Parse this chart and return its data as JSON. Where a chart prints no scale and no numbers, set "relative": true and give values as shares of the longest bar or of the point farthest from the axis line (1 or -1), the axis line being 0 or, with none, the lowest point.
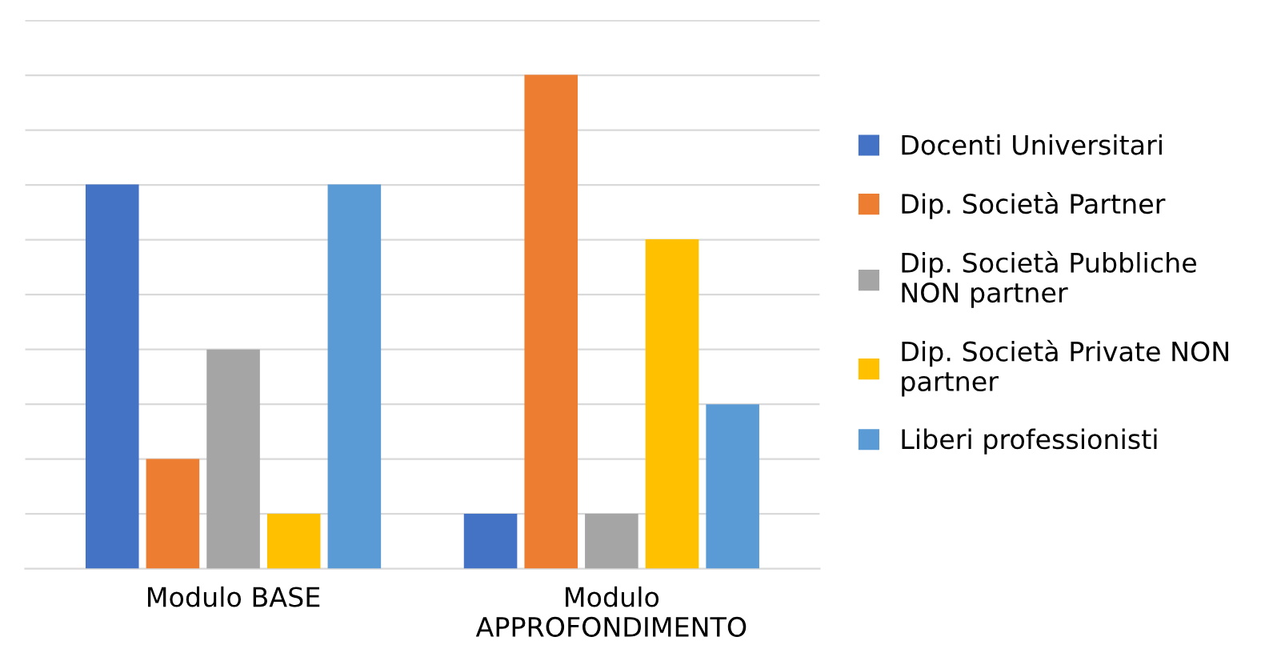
{
  "chart_data": {
    "type": "bar",
    "relative": true,
    "grid": "y",
    "legend": "right",
    "categories": [
      "Modulo BASE",
      "Modulo\nAPPROFONDIMENTO"
    ],
    "series": [
      {
        "name": "Docenti Universitari",
        "color": "#4472c4",
        "values": [
          0.778,
          0.111
        ]
      },
      {
        "name": "Dip. Società Partner",
        "color": "#ed7d31",
        "values": [
          0.222,
          1
        ]
      },
      {
        "name": "Dip. Società Pubbliche\nNON partner",
        "color": "#a5a5a5",
        "values": [
          0.444,
          0.111
        ]
      },
      {
        "name": "Dip. Società Private NON\npartner",
        "color": "#ffc000",
        "values": [
          0.111,
          0.667
        ]
      },
      {
        "name": "Liberi professionisti",
        "color": "#5b9bd5",
        "values": [
          0.778,
          0.333
        ]
      }
    ]
  }
}
